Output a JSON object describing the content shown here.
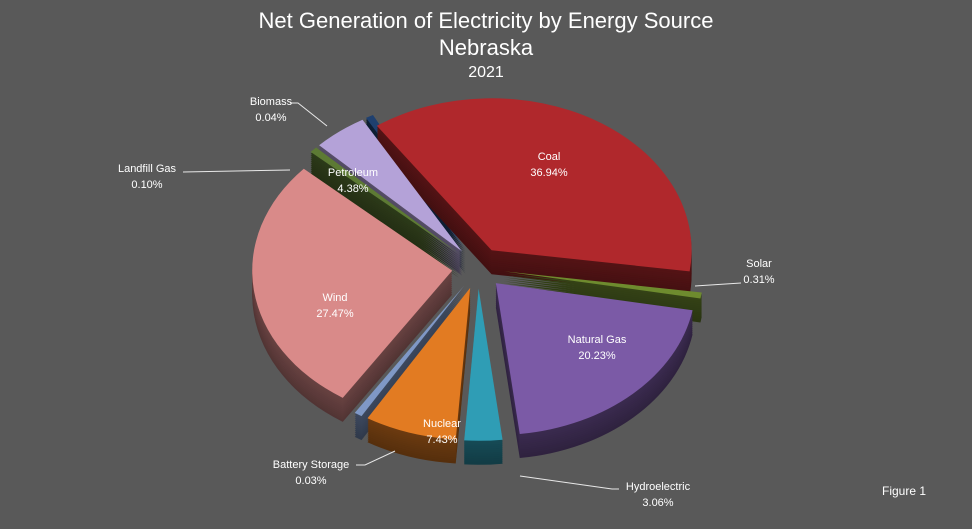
{
  "chart_data": {
    "type": "pie",
    "title": "Net Generation of Electricity by Energy Source",
    "subtitle": "Nebraska",
    "year": "2021",
    "style": "3d-exploded",
    "slices": [
      {
        "label": "Coal",
        "value": 36.94,
        "display": "36.94%",
        "color": "#b0282c"
      },
      {
        "label": "Solar",
        "value": 0.31,
        "display": "0.31%",
        "color": "#6e8b2e"
      },
      {
        "label": "Natural Gas",
        "value": 20.23,
        "display": "20.23%",
        "color": "#7b5aa6"
      },
      {
        "label": "Hydroelectric",
        "value": 3.06,
        "display": "3.06%",
        "color": "#2f9db5"
      },
      {
        "label": "Nuclear",
        "value": 7.43,
        "display": "7.43%",
        "color": "#e27b22"
      },
      {
        "label": "Battery Storage",
        "value": 0.03,
        "display": "0.03%",
        "color": "#7f98c6"
      },
      {
        "label": "Wind",
        "value": 27.47,
        "display": "27.47%",
        "color": "#d98a89"
      },
      {
        "label": "Landfill Gas",
        "value": 0.1,
        "display": "0.10%",
        "color": "#5d7a34"
      },
      {
        "label": "Petroleum",
        "value": 4.38,
        "display": "4.38%",
        "color": "#b4a2d8"
      },
      {
        "label": "Biomass",
        "value": 0.04,
        "display": "0.04%",
        "color": "#1f406f"
      }
    ]
  },
  "footer": {
    "figure_label": "Figure 1"
  }
}
